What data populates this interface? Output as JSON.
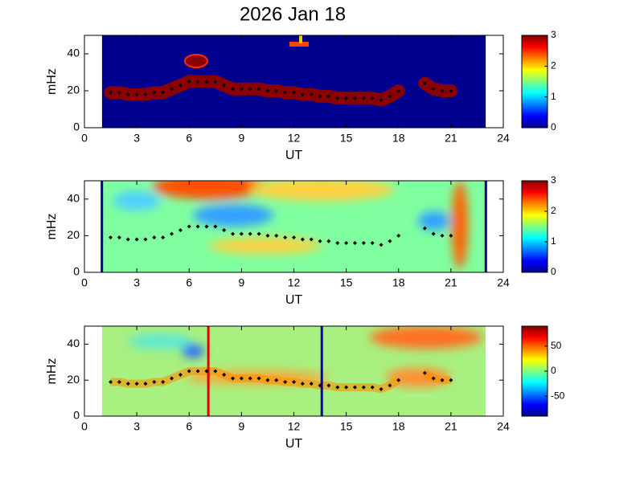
{
  "chart_data": [
    {
      "type": "heatmap",
      "title": "2026 Jan 18",
      "xlabel": "UT",
      "ylabel": "mHz",
      "xlim": [
        0,
        24
      ],
      "xticks": [
        0,
        3,
        6,
        9,
        12,
        15,
        18,
        21,
        24
      ],
      "ylim": [
        0,
        50
      ],
      "yticks": [
        0,
        20,
        40
      ],
      "coverage": [
        1,
        23
      ],
      "edge_bars": false,
      "colorbar": {
        "lim": [
          0,
          3
        ],
        "ticks": [
          0,
          1,
          2,
          3
        ]
      },
      "trace": {
        "x": [
          1.5,
          2,
          2.5,
          3,
          3.5,
          4,
          4.5,
          5,
          5.5,
          6,
          6.5,
          7,
          7.5,
          8,
          8.5,
          9,
          9.5,
          10,
          10.5,
          11,
          11.5,
          12,
          12.5,
          13,
          13.5,
          14,
          14.5,
          15,
          15.5,
          16,
          16.5,
          17,
          17.5,
          18,
          19,
          19.5,
          20,
          20.5,
          21
        ],
        "y": [
          19,
          19,
          18,
          18,
          18,
          19,
          19,
          21,
          23,
          25,
          25,
          25,
          25,
          23,
          21,
          21,
          21,
          21,
          20,
          20,
          19,
          19,
          18,
          18,
          17,
          17,
          16,
          16,
          16,
          16,
          16,
          15,
          17,
          20,
          null,
          24,
          21,
          20,
          20
        ]
      },
      "markers": []
    },
    {
      "type": "heatmap",
      "xlabel": "UT",
      "ylabel": "mHz",
      "xlim": [
        0,
        24
      ],
      "xticks": [
        0,
        3,
        6,
        9,
        12,
        15,
        18,
        21,
        24
      ],
      "ylim": [
        0,
        50
      ],
      "yticks": [
        0,
        20,
        40
      ],
      "coverage": [
        1,
        23
      ],
      "edge_bars": true,
      "colorbar": {
        "lim": [
          0,
          3
        ],
        "ticks": [
          0,
          1,
          2,
          3
        ]
      },
      "trace": {
        "x": [
          1.5,
          2,
          2.5,
          3,
          3.5,
          4,
          4.5,
          5,
          5.5,
          6,
          6.5,
          7,
          7.5,
          8,
          8.5,
          9,
          9.5,
          10,
          10.5,
          11,
          11.5,
          12,
          12.5,
          13,
          13.5,
          14,
          14.5,
          15,
          15.5,
          16,
          16.5,
          17,
          17.5,
          18,
          19,
          19.5,
          20,
          20.5,
          21
        ],
        "y": [
          19,
          19,
          18,
          18,
          18,
          19,
          19,
          21,
          23,
          25,
          25,
          25,
          25,
          23,
          21,
          21,
          21,
          21,
          20,
          20,
          19,
          19,
          18,
          18,
          17,
          17,
          16,
          16,
          16,
          16,
          16,
          15,
          17,
          20,
          null,
          24,
          21,
          20,
          20
        ]
      },
      "markers": []
    },
    {
      "type": "heatmap",
      "xlabel": "UT",
      "ylabel": "mHz",
      "xlim": [
        0,
        24
      ],
      "xticks": [
        0,
        3,
        6,
        9,
        12,
        15,
        18,
        21,
        24
      ],
      "ylim": [
        0,
        50
      ],
      "yticks": [
        0,
        20,
        40
      ],
      "coverage": [
        1,
        23
      ],
      "edge_bars": false,
      "colorbar": {
        "lim": [
          -90,
          90
        ],
        "ticks": [
          -50,
          0,
          50
        ]
      },
      "trace": {
        "x": [
          1.5,
          2,
          2.5,
          3,
          3.5,
          4,
          4.5,
          5,
          5.5,
          6,
          6.5,
          7,
          7.5,
          8,
          8.5,
          9,
          9.5,
          10,
          10.5,
          11,
          11.5,
          12,
          12.5,
          13,
          13.5,
          14,
          14.5,
          15,
          15.5,
          16,
          16.5,
          17,
          17.5,
          18,
          19,
          19.5,
          20,
          20.5,
          21
        ],
        "y": [
          19,
          19,
          18,
          18,
          18,
          19,
          19,
          21,
          23,
          25,
          25,
          25,
          25,
          23,
          21,
          21,
          21,
          21,
          20,
          20,
          19,
          19,
          18,
          18,
          17,
          17,
          16,
          16,
          16,
          16,
          16,
          15,
          17,
          20,
          null,
          24,
          21,
          20,
          20
        ]
      },
      "markers": [
        {
          "x": 7.1,
          "color": "#e00000"
        },
        {
          "x": 13.6,
          "color": "#0000c0"
        }
      ]
    }
  ]
}
